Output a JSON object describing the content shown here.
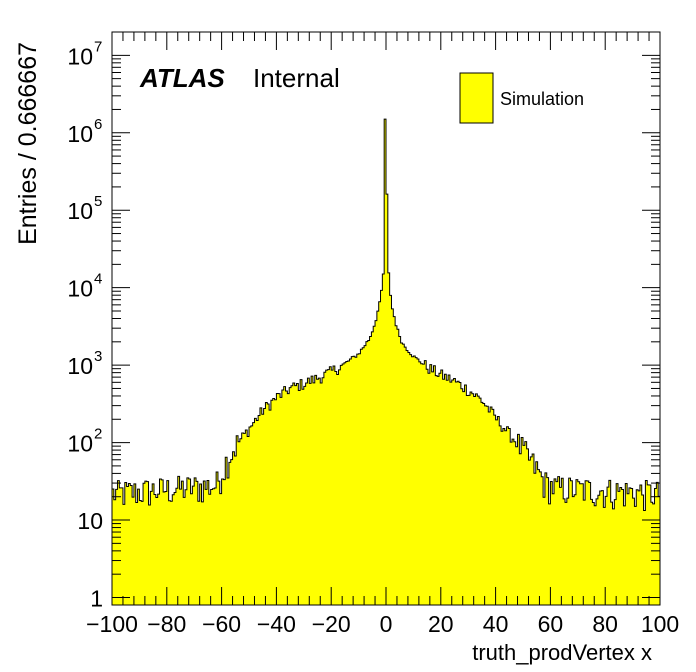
{
  "chart_data": {
    "type": "bar",
    "style": "filled-step-histogram",
    "xlabel": "truth_prodVertex x",
    "ylabel": "Entries / 0.666667",
    "xlim": [
      -100,
      100
    ],
    "ylim": [
      0.8,
      20000000
    ],
    "yscale": "log",
    "bin_width": 0.666667,
    "fill_color": "#ffff00",
    "line_color": "#000000",
    "x_ticks": [
      -100,
      -80,
      -60,
      -40,
      -20,
      0,
      20,
      40,
      60,
      80,
      100
    ],
    "x_tick_labels": [
      "−100",
      "−80",
      "−60",
      "−40",
      "−20",
      "0",
      "20",
      "40",
      "60",
      "80",
      "100"
    ],
    "y_tick_labels": [
      {
        "value": 1,
        "base": "1",
        "exp": ""
      },
      {
        "value": 10,
        "base": "10",
        "exp": ""
      },
      {
        "value": 100,
        "base": "10",
        "exp": "2"
      },
      {
        "value": 1000,
        "base": "10",
        "exp": "3"
      },
      {
        "value": 10000,
        "base": "10",
        "exp": "4"
      },
      {
        "value": 100000,
        "base": "10",
        "exp": "5"
      },
      {
        "value": 1000000,
        "base": "10",
        "exp": "6"
      },
      {
        "value": 10000000,
        "base": "10",
        "exp": "7"
      }
    ],
    "profile": {
      "x": [
        -100,
        -80,
        -62,
        -58,
        -55,
        -50,
        -45,
        -40,
        -35,
        -30,
        -25,
        -20,
        -15,
        -10,
        -6,
        -4,
        -2,
        -1,
        -0.5,
        0,
        0.5,
        1,
        2,
        4,
        6,
        10,
        15,
        20,
        25,
        30,
        35,
        40,
        45,
        50,
        55,
        58,
        62,
        80,
        100
      ],
      "y": [
        22,
        25,
        28,
        60,
        90,
        150,
        260,
        380,
        500,
        580,
        680,
        820,
        1050,
        1400,
        2200,
        3500,
        7000,
        15000,
        50000,
        1500000,
        50000,
        15000,
        6000,
        3000,
        1900,
        1300,
        950,
        750,
        620,
        480,
        350,
        210,
        130,
        80,
        45,
        30,
        26,
        24,
        22
      ]
    },
    "series": [
      {
        "name": "Simulation",
        "peak_x": 0,
        "peak_value": 1500000
      }
    ],
    "legend": {
      "position": "top-right",
      "entries": [
        {
          "label": "Simulation",
          "color": "#ffff00"
        }
      ]
    }
  },
  "annotation": {
    "experiment": "ATLAS",
    "status": "Internal"
  }
}
